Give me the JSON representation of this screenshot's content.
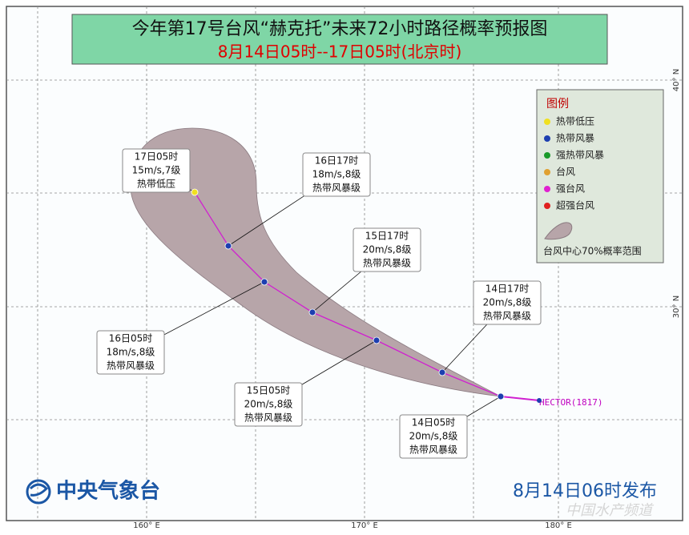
{
  "header": {
    "title": "今年第17号台风“赫克托”未来72小时路径概率预报图",
    "subtitle": "8月14日05时--17日05时(北京时)"
  },
  "legend": {
    "title": "图例",
    "items": [
      "热带低压",
      "热带风暴",
      "强热带风暴",
      "台风",
      "强台风",
      "超强台风"
    ],
    "cone": "台风中心70%概率范围"
  },
  "forecast_points": [
    {
      "time": "14日05时",
      "wind": "20m/s,8级",
      "level": "热带风暴级"
    },
    {
      "time": "14日17时",
      "wind": "20m/s,8级",
      "level": "热带风暴级"
    },
    {
      "time": "15日05时",
      "wind": "20m/s,8级",
      "level": "热带风暴级"
    },
    {
      "time": "15日17时",
      "wind": "20m/s,8级",
      "level": "热带风暴级"
    },
    {
      "time": "16日05时",
      "wind": "18m/s,8级",
      "level": "热带风暴级"
    },
    {
      "time": "16日17时",
      "wind": "18m/s,8级",
      "level": "热带风暴级"
    },
    {
      "time": "17日05时",
      "wind": "15m/s,7级",
      "level": "热带低压"
    }
  ],
  "storm_label": "HECTOR(1817)",
  "axes": {
    "lon": [
      "160° E",
      "170° E",
      "180° E"
    ],
    "lat": [
      "30° N",
      "40° N"
    ]
  },
  "footer": {
    "agency": "中央气象台",
    "issued": "8月14日06时发布",
    "watermark": "中国水产频道"
  }
}
